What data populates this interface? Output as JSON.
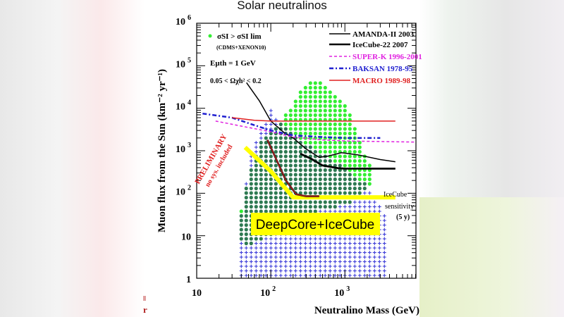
{
  "slide": {
    "title": "Solar neutralinos",
    "fragment": "r"
  },
  "chart_data": {
    "type": "scatter",
    "title": "",
    "xlabel": "Neutralino Mass (GeV)",
    "ylabel": "Muon flux from the Sun (km⁻² yr⁻¹)",
    "xscale": "log",
    "yscale": "log",
    "xlim": [
      10,
      9100
    ],
    "ylim": [
      1,
      1000000
    ],
    "xticks": [
      {
        "v": 10,
        "label": "10"
      },
      {
        "v": 100,
        "label": "10",
        "sup": "2"
      },
      {
        "v": 1000,
        "label": "10",
        "sup": "3"
      }
    ],
    "yticks": [
      {
        "v": 1,
        "label": "1"
      },
      {
        "v": 10,
        "label": "10"
      },
      {
        "v": 100,
        "label": "10",
        "sup": "2"
      },
      {
        "v": 1000,
        "label": "10",
        "sup": "3"
      },
      {
        "v": 10000,
        "label": "10",
        "sup": "4"
      },
      {
        "v": 100000,
        "label": "10",
        "sup": "5"
      },
      {
        "v": 1000000,
        "label": "10",
        "sup": "6"
      }
    ],
    "annotations": {
      "sigma": "σSI > σSI lim",
      "sigma_note": "(CDMS+XENON10)",
      "threshold": "Eμth = 1 GeV",
      "omega": "0.05 < Ωχh² < 0.2",
      "preliminary": "PRELIMINARY",
      "no_sys": "no sys. included",
      "icecube_sens_1": "IceCube",
      "icecube_sens_2": "sensitivity",
      "icecube_sens_3": "(5 y)",
      "deepcore": "DeepCore+IceCube"
    },
    "legend_position": "top-right",
    "series": [
      {
        "name": "AMANDA-II 2003",
        "color": "#000000",
        "style": "thin",
        "points": [
          [
            47,
            40000
          ],
          [
            70,
            15000
          ],
          [
            100,
            5000
          ],
          [
            150,
            2700
          ],
          [
            200,
            2000
          ],
          [
            300,
            1100
          ],
          [
            450,
            700
          ],
          [
            600,
            750
          ],
          [
            900,
            900
          ],
          [
            1500,
            800
          ],
          [
            3000,
            620
          ],
          [
            4800,
            550
          ]
        ]
      },
      {
        "name": "IceCube-22 2007",
        "color": "#000000",
        "style": "thick",
        "points": [
          [
            250,
            850
          ],
          [
            350,
            650
          ],
          [
            500,
            450
          ],
          [
            800,
            390
          ],
          [
            1000,
            380
          ],
          [
            2000,
            380
          ],
          [
            4800,
            380
          ]
        ]
      },
      {
        "name": "SUPER-K 1996-2001",
        "color": "#e020e0",
        "style": "dashed",
        "points": [
          [
            18,
            5000
          ],
          [
            40,
            3800
          ],
          [
            100,
            2800
          ],
          [
            200,
            2100
          ],
          [
            500,
            1800
          ],
          [
            1000,
            1700
          ],
          [
            9000,
            1600
          ]
        ]
      },
      {
        "name": "BAKSAN 1978-95",
        "color": "#2020d0",
        "style": "dashdot",
        "points": [
          [
            12,
            7500
          ],
          [
            30,
            6000
          ],
          [
            60,
            4000
          ],
          [
            100,
            3000
          ],
          [
            200,
            2300
          ],
          [
            500,
            2100
          ],
          [
            1000,
            2000
          ],
          [
            3000,
            2000
          ]
        ]
      },
      {
        "name": "MACRO 1989-98",
        "color": "#e02020",
        "style": "solid",
        "points": [
          [
            30,
            6000
          ],
          [
            60,
            5200
          ],
          [
            100,
            5000
          ],
          [
            500,
            5000
          ],
          [
            4800,
            5000
          ]
        ]
      },
      {
        "name": "",
        "color": "#ffff00",
        "style": "sensitivity",
        "points": [
          [
            45,
            1200
          ],
          [
            100,
            330
          ],
          [
            200,
            80
          ],
          [
            1000,
            80
          ],
          [
            4800,
            80
          ]
        ]
      },
      {
        "name": "",
        "color": "#b02020",
        "style": "deepcore",
        "points": [
          [
            90,
            1800
          ],
          [
            120,
            600
          ],
          [
            160,
            200
          ],
          [
            220,
            95
          ],
          [
            300,
            85
          ],
          [
            450,
            85
          ]
        ]
      }
    ],
    "models_green": [
      [
        40,
        8,
        40
      ],
      [
        50,
        5,
        300
      ],
      [
        70,
        8,
        1500
      ],
      [
        100,
        10,
        3000
      ],
      [
        150,
        15,
        6000
      ],
      [
        200,
        20,
        14000
      ],
      [
        300,
        30,
        40000
      ],
      [
        500,
        40,
        40000
      ],
      [
        800,
        50,
        20000
      ],
      [
        1200,
        60,
        8000
      ],
      [
        1600,
        100,
        1500
      ],
      [
        2500,
        150,
        250
      ]
    ],
    "models_blue": [
      [
        40,
        1,
        30
      ],
      [
        50,
        1,
        500
      ],
      [
        70,
        1,
        2500
      ],
      [
        100,
        1,
        9000
      ],
      [
        150,
        1,
        4000
      ],
      [
        300,
        1,
        1500
      ],
      [
        1000,
        1,
        400
      ],
      [
        2000,
        1,
        150
      ],
      [
        3500,
        1,
        30
      ]
    ],
    "colors": {
      "green": "#33ee33",
      "overlap": "#2e7a52",
      "blue": "#3a3ad8"
    }
  }
}
